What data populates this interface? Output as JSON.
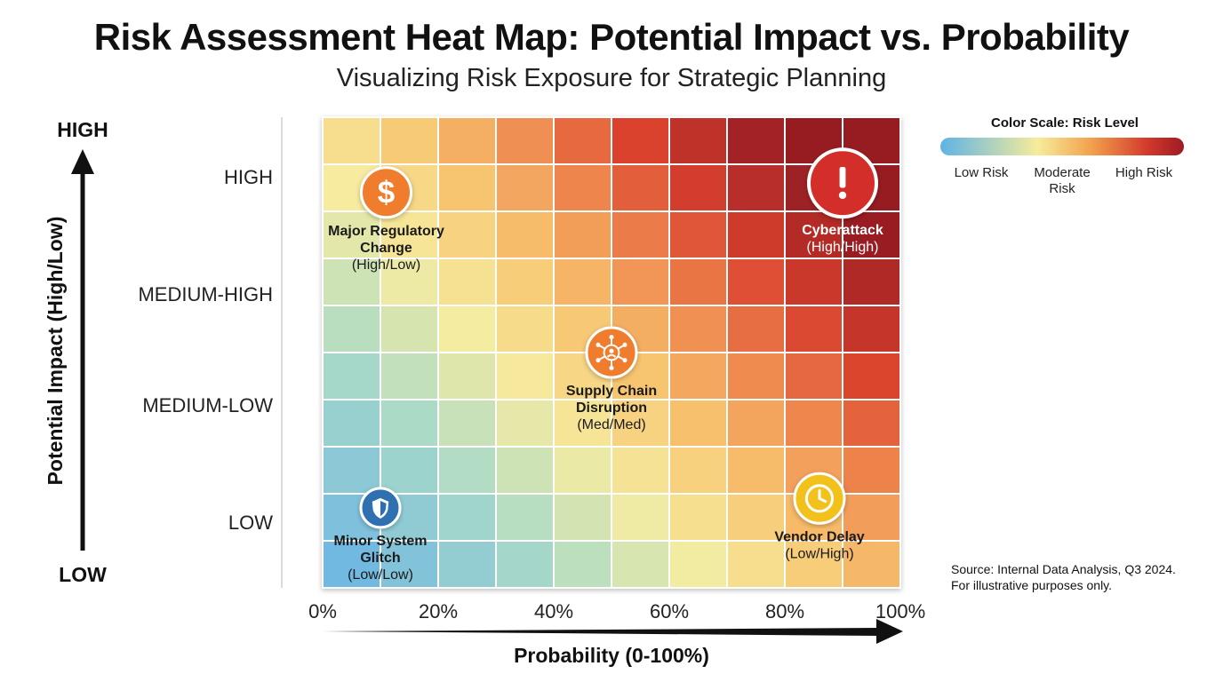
{
  "title": "Risk Assessment Heat Map: Potential Impact vs. Probability",
  "subtitle": "Visualizing Risk Exposure for Strategic Planning",
  "chart_data": {
    "type": "heatmap",
    "xlabel": "Probability (0-100%)",
    "ylabel": "Potential Impact (High/Low)",
    "x_ticks": [
      "0%",
      "20%",
      "40%",
      "60%",
      "80%",
      "100%"
    ],
    "xlim": [
      0,
      100
    ],
    "y_ticks": [
      "HIGH",
      "MEDIUM-HIGH",
      "MEDIUM-LOW",
      "LOW"
    ],
    "y_axis_ends": {
      "top": "HIGH",
      "bottom": "LOW"
    },
    "grid": "on",
    "legend_position": "top-right",
    "color_scale": {
      "title": "Color Scale: Risk Level",
      "labels": [
        "Low Risk",
        "Moderate Risk",
        "High Risk"
      ],
      "colors": [
        "#5fb3e6",
        "#f6ec9a",
        "#d23a2c",
        "#9e1b24"
      ]
    },
    "risks": [
      {
        "name": "Major Regulatory Change",
        "rating": "(High/Low)",
        "probability": 11,
        "impact": 8.4,
        "icon": "dollar-icon",
        "color": "#f07d2e"
      },
      {
        "name": "Cyberattack",
        "rating": "(High/High)",
        "probability": 90,
        "impact": 8.6,
        "icon": "alert-icon",
        "color": "#d42e2a"
      },
      {
        "name": "Supply Chain Disruption",
        "rating": "(Med/Med)",
        "probability": 50,
        "impact": 5.0,
        "icon": "network-icon",
        "color": "#f07d2e"
      },
      {
        "name": "Minor System Glitch",
        "rating": "(Low/Low)",
        "probability": 10,
        "impact": 1.7,
        "icon": "shield-icon",
        "color": "#2f6fb0"
      },
      {
        "name": "Vendor Delay",
        "rating": "(Low/High)",
        "probability": 86,
        "impact": 1.9,
        "icon": "clock-icon",
        "color": "#f2c11d"
      }
    ]
  },
  "source_note": {
    "line1": "Source: Internal Data Analysis, Q3 2024.",
    "line2": "For illustrative purposes only."
  }
}
